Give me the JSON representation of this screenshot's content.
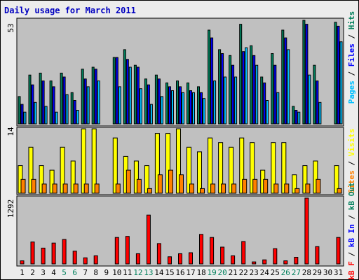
{
  "title": "Daily usage for March 2011",
  "colors": {
    "hits": "#00805c",
    "files": "#0000ff",
    "pages": "#00c0ff",
    "visits": "#ffff00",
    "sites": "#ff8000",
    "kb_in": "#ff0000",
    "panel_bg": "#c0c0c0"
  },
  "chart_data": [
    {
      "type": "bar",
      "panel": "top",
      "y_max_label": "53",
      "ylim": [
        0,
        53
      ],
      "side_label": {
        "pages": "Pages",
        "files": "Files",
        "hits": "Hits",
        "sep": " / "
      },
      "categories": [
        "1",
        "2",
        "3",
        "4",
        "5",
        "6",
        "7",
        "8",
        "9",
        "10",
        "11",
        "12",
        "13",
        "14",
        "15",
        "16",
        "17",
        "18",
        "19",
        "20",
        "21",
        "22",
        "23",
        "24",
        "25",
        "26",
        "27",
        "28",
        "29",
        "30",
        "31"
      ],
      "weekend_days": [
        "5",
        "6",
        "12",
        "13",
        "19",
        "20",
        "26",
        "27"
      ],
      "series": [
        {
          "name": "Hits",
          "color": "#00805c",
          "values": [
            14,
            25,
            26,
            22,
            26,
            16,
            28,
            29,
            null,
            34,
            38,
            30,
            23,
            25,
            21,
            22,
            21,
            19,
            48,
            38,
            35,
            51,
            40,
            24,
            36,
            48,
            9,
            53,
            30,
            null,
            52
          ]
        },
        {
          "name": "Files",
          "color": "#0000ff",
          "values": [
            10,
            20,
            22,
            19,
            24,
            12,
            23,
            28,
            null,
            34,
            33,
            29,
            20,
            23,
            19,
            19,
            17,
            16,
            44,
            36,
            30,
            37,
            35,
            21,
            30,
            44,
            7,
            51,
            22,
            null,
            50
          ]
        },
        {
          "name": "Pages",
          "color": "#00c0ff",
          "values": [
            6,
            11,
            9,
            6,
            15,
            7,
            19,
            22,
            null,
            19,
            29,
            18,
            10,
            14,
            17,
            16,
            16,
            13,
            22,
            24,
            24,
            39,
            30,
            12,
            16,
            38,
            6,
            25,
            11,
            null,
            42
          ]
        }
      ]
    },
    {
      "type": "bar",
      "panel": "middle",
      "y_max_label": "14",
      "ylim": [
        0,
        14
      ],
      "side_label": {
        "visits": "Visits",
        "sites": "Sites",
        "sep": " / "
      },
      "categories": [
        "1",
        "2",
        "3",
        "4",
        "5",
        "6",
        "7",
        "8",
        "9",
        "10",
        "11",
        "12",
        "13",
        "14",
        "15",
        "16",
        "17",
        "18",
        "19",
        "20",
        "21",
        "22",
        "23",
        "24",
        "25",
        "26",
        "27",
        "28",
        "29",
        "30",
        "31"
      ],
      "series": [
        {
          "name": "Visits",
          "color": "#ffff00",
          "values": [
            6,
            10,
            6,
            5,
            10,
            7,
            14,
            14,
            null,
            12,
            8,
            7,
            6,
            13,
            13,
            14,
            10,
            9,
            12,
            11,
            10,
            12,
            11,
            5,
            11,
            11,
            4,
            6,
            7,
            null,
            6
          ]
        },
        {
          "name": "Sites",
          "color": "#ff8000",
          "values": [
            3,
            3,
            2,
            2,
            2,
            2,
            2,
            2,
            null,
            2,
            5,
            3,
            1,
            4,
            5,
            4,
            2,
            1,
            2,
            2,
            2,
            3,
            3,
            3,
            2,
            2,
            1,
            2,
            3,
            null,
            1
          ]
        }
      ]
    },
    {
      "type": "bar",
      "panel": "bottom",
      "y_max_label": "1292",
      "ylim": [
        0,
        1292
      ],
      "side_label": {
        "kb_f": "kB F",
        "kb_in": "kB In",
        "kb_out": "kB Out",
        "sep": " / "
      },
      "categories": [
        "1",
        "2",
        "3",
        "4",
        "5",
        "6",
        "7",
        "8",
        "9",
        "10",
        "11",
        "12",
        "13",
        "14",
        "15",
        "16",
        "17",
        "18",
        "19",
        "20",
        "21",
        "22",
        "23",
        "24",
        "25",
        "26",
        "27",
        "28",
        "29",
        "30",
        "31"
      ],
      "series": [
        {
          "name": "kB In",
          "color": "#ff0000",
          "values": [
            60,
            430,
            310,
            410,
            480,
            250,
            120,
            160,
            null,
            520,
            540,
            200,
            960,
            400,
            140,
            200,
            220,
            580,
            520,
            330,
            160,
            440,
            40,
            80,
            300,
            60,
            130,
            1292,
            340,
            null,
            520
          ]
        }
      ]
    }
  ]
}
